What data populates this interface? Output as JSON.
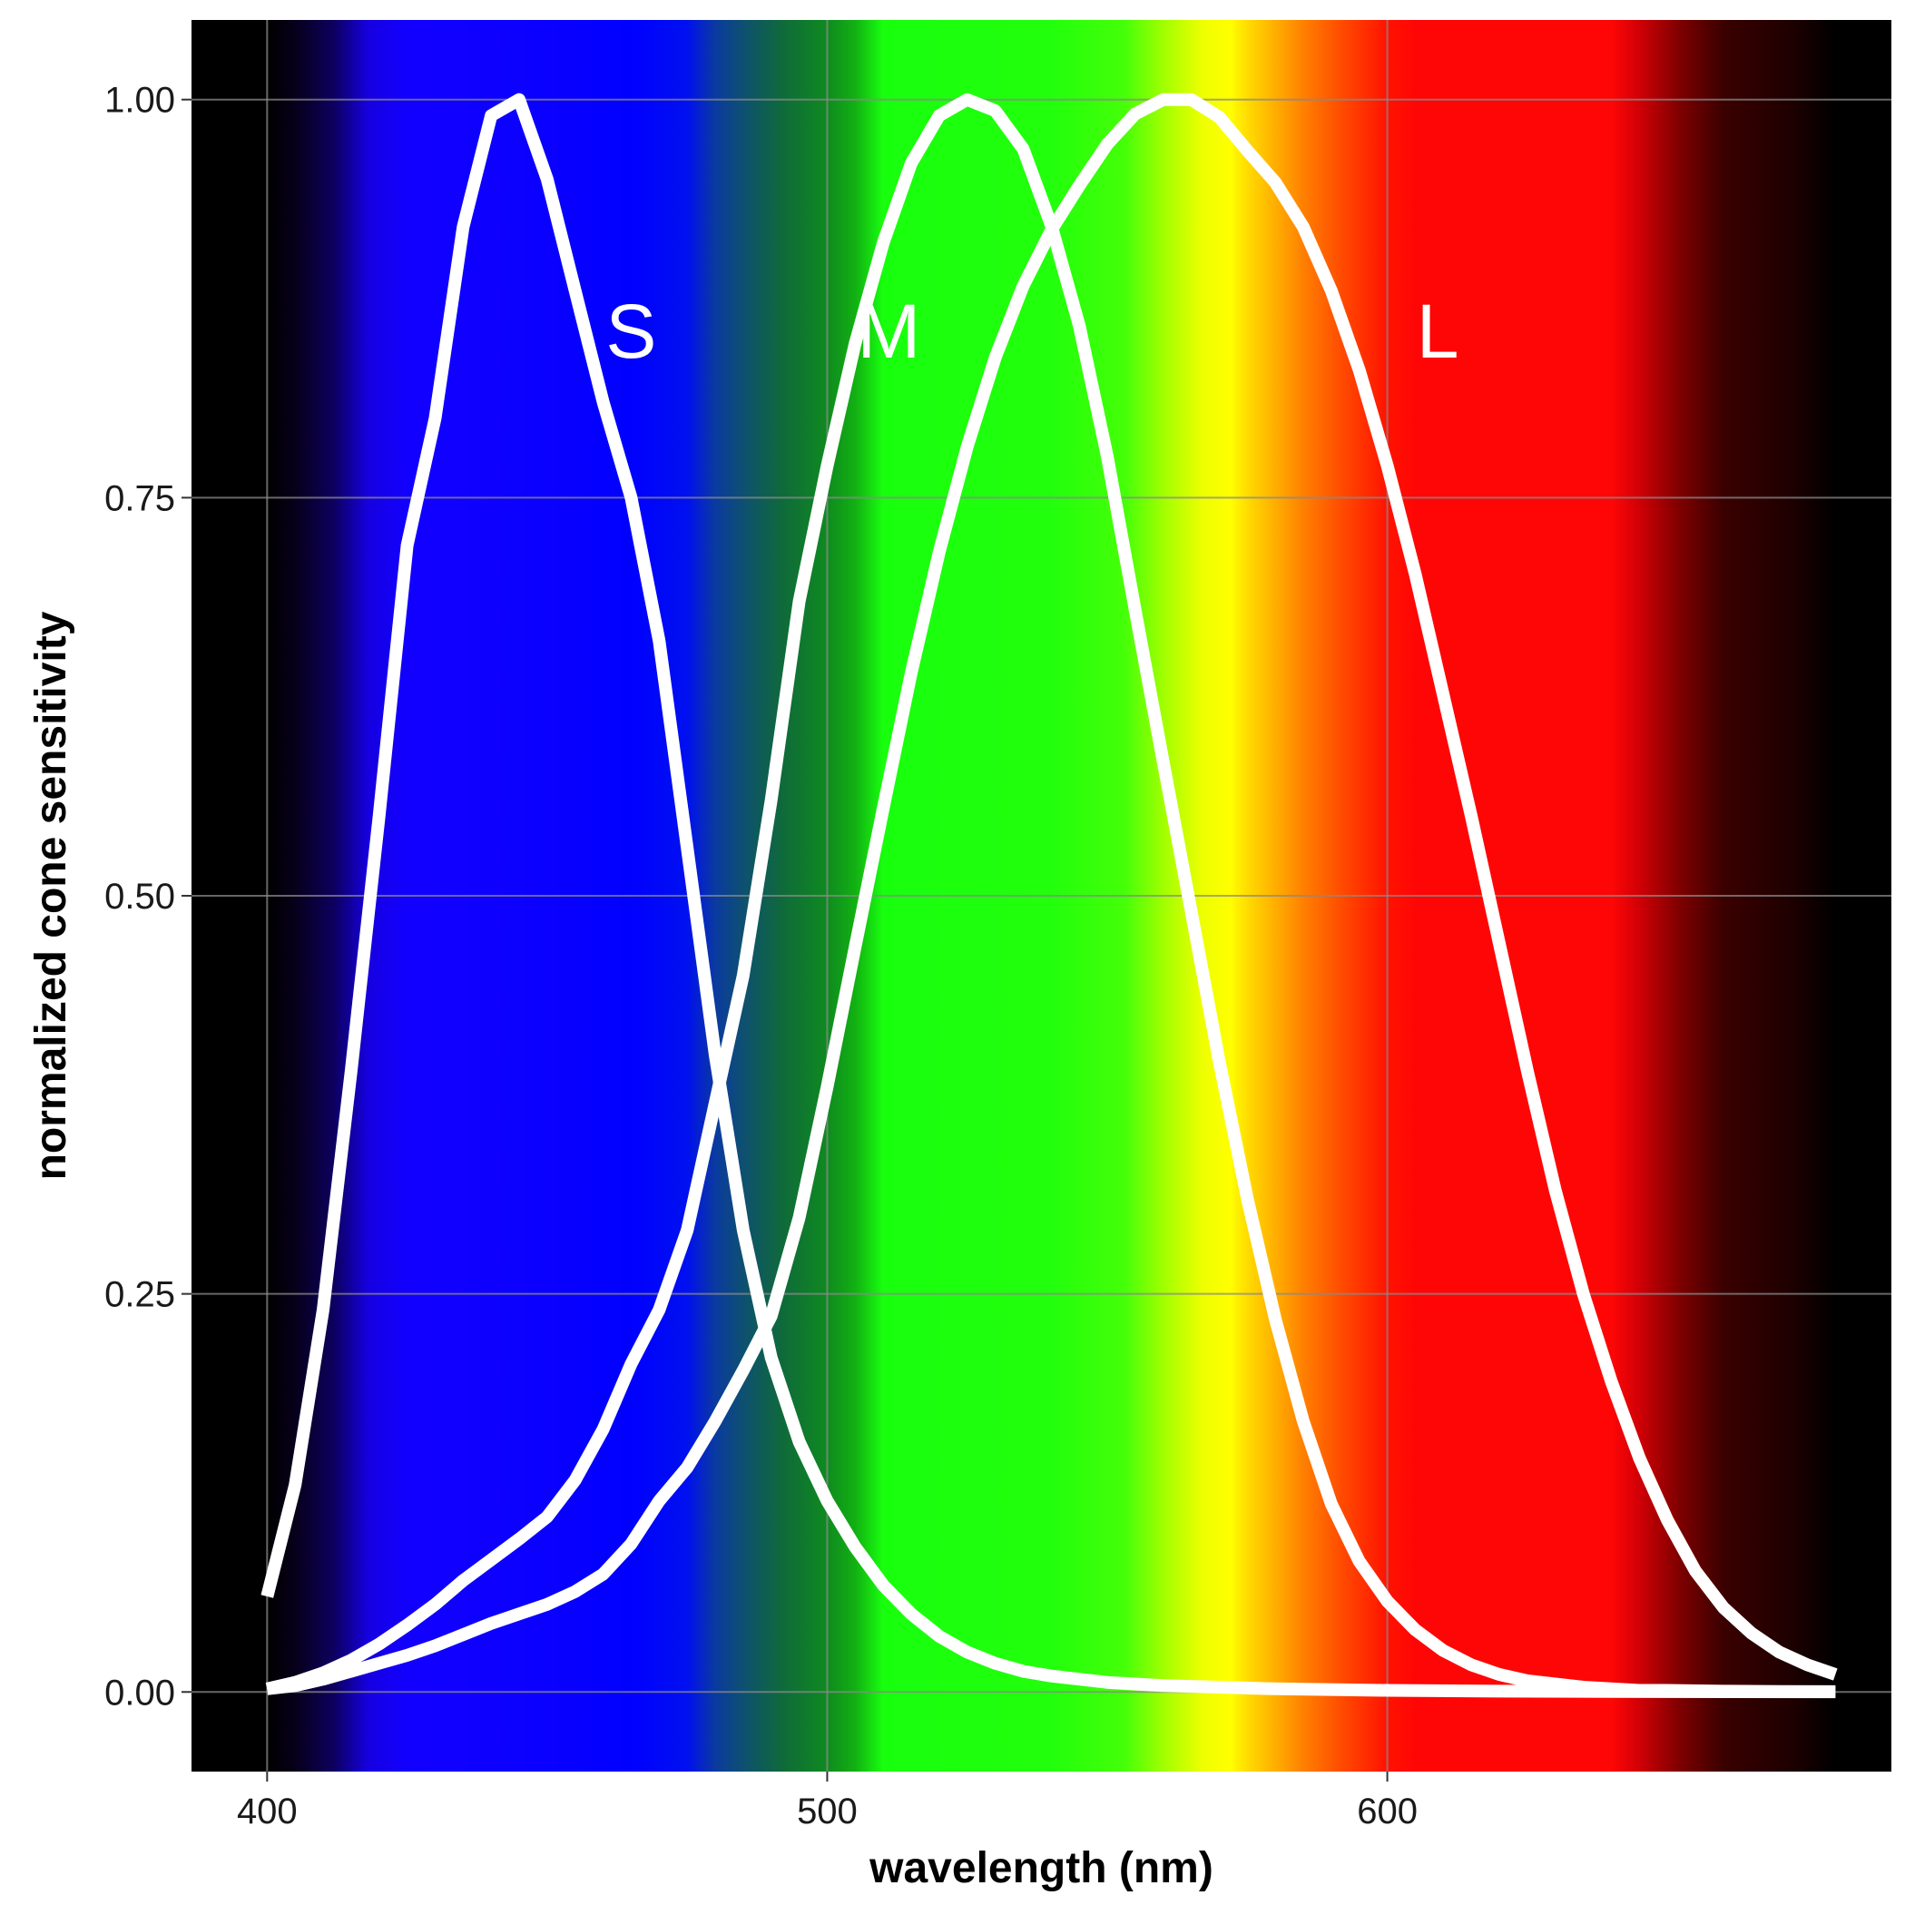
{
  "chart_data": {
    "type": "line",
    "title": "",
    "xlabel": "wavelength (nm)",
    "ylabel": "normalized cone sensitivity",
    "xlim": [
      386.5,
      690
    ],
    "ylim": [
      -0.05,
      1.05
    ],
    "x_ticks": [
      400,
      500,
      600
    ],
    "x_tick_labels": [
      "400",
      "500",
      "600"
    ],
    "y_ticks": [
      0,
      0.25,
      0.5,
      0.75,
      1.0
    ],
    "y_tick_labels": [
      "0.00",
      "0.25",
      "0.50",
      "0.75",
      "1.00"
    ],
    "grid": true,
    "legend": "none",
    "background": "visible spectrum gradient from 400 to 680 nm",
    "line_color": "#ffffff",
    "spectrum_stops": [
      {
        "nm": 400,
        "color": "#000000"
      },
      {
        "nm": 405,
        "color": "#07001a"
      },
      {
        "nm": 412,
        "color": "#0d0060"
      },
      {
        "nm": 418,
        "color": "#1600e0"
      },
      {
        "nm": 425,
        "color": "#1200ff"
      },
      {
        "nm": 450,
        "color": "#0a00ff"
      },
      {
        "nm": 465,
        "color": "#0000ff"
      },
      {
        "nm": 475,
        "color": "#0010f0"
      },
      {
        "nm": 480,
        "color": "#0a3aa0"
      },
      {
        "nm": 485,
        "color": "#0e5070"
      },
      {
        "nm": 492,
        "color": "#0f6a3a"
      },
      {
        "nm": 500,
        "color": "#0f8a20"
      },
      {
        "nm": 505,
        "color": "#12b012"
      },
      {
        "nm": 510,
        "color": "#18ff0e"
      },
      {
        "nm": 540,
        "color": "#22ff0c"
      },
      {
        "nm": 553,
        "color": "#44ff08"
      },
      {
        "nm": 560,
        "color": "#a0ff00"
      },
      {
        "nm": 567,
        "color": "#eeff00"
      },
      {
        "nm": 572,
        "color": "#ffff00"
      },
      {
        "nm": 575,
        "color": "#ffdc00"
      },
      {
        "nm": 580,
        "color": "#ffae00"
      },
      {
        "nm": 585,
        "color": "#ff8000"
      },
      {
        "nm": 592,
        "color": "#ff4a00"
      },
      {
        "nm": 600,
        "color": "#ff1200"
      },
      {
        "nm": 605,
        "color": "#ff0606"
      },
      {
        "nm": 640,
        "color": "#ff0606"
      },
      {
        "nm": 645,
        "color": "#d00006"
      },
      {
        "nm": 652,
        "color": "#800000"
      },
      {
        "nm": 660,
        "color": "#3a0000"
      },
      {
        "nm": 672,
        "color": "#1e0000"
      },
      {
        "nm": 680,
        "color": "#000000"
      }
    ],
    "series": [
      {
        "name": "S",
        "label_x": 465,
        "label_y": 0.855,
        "x": [
          400,
          405,
          410,
          415,
          420,
          425,
          430,
          435,
          440,
          445,
          450,
          455,
          460,
          465,
          470,
          475,
          480,
          485,
          490,
          495,
          500,
          505,
          510,
          515,
          520,
          525,
          530,
          535,
          540,
          545,
          550,
          560,
          570,
          580,
          600,
          620,
          650,
          680
        ],
        "values": [
          0.06,
          0.13,
          0.24,
          0.39,
          0.55,
          0.72,
          0.8,
          0.92,
          0.99,
          1.0,
          0.95,
          0.88,
          0.81,
          0.75,
          0.66,
          0.53,
          0.4,
          0.29,
          0.21,
          0.157,
          0.12,
          0.091,
          0.067,
          0.049,
          0.035,
          0.025,
          0.018,
          0.013,
          0.01,
          0.008,
          0.006,
          0.004,
          0.003,
          0.002,
          0.001,
          0.0005,
          0.0002,
          0.0001
        ]
      },
      {
        "name": "M",
        "label_x": 511,
        "label_y": 0.855,
        "x": [
          400,
          405,
          410,
          415,
          420,
          425,
          430,
          435,
          440,
          445,
          450,
          455,
          460,
          465,
          470,
          475,
          480,
          485,
          490,
          495,
          500,
          505,
          510,
          515,
          520,
          525,
          530,
          535,
          540,
          545,
          550,
          555,
          560,
          565,
          570,
          575,
          580,
          585,
          590,
          595,
          600,
          605,
          610,
          615,
          620,
          625,
          630,
          635,
          640,
          645,
          650,
          660,
          670,
          680
        ],
        "values": [
          0.002,
          0.006,
          0.012,
          0.02,
          0.03,
          0.042,
          0.055,
          0.07,
          0.083,
          0.096,
          0.11,
          0.133,
          0.165,
          0.206,
          0.24,
          0.29,
          0.37,
          0.45,
          0.56,
          0.685,
          0.77,
          0.847,
          0.91,
          0.96,
          0.99,
          1.0,
          0.993,
          0.969,
          0.921,
          0.858,
          0.776,
          0.679,
          0.584,
          0.49,
          0.396,
          0.31,
          0.234,
          0.17,
          0.118,
          0.082,
          0.057,
          0.039,
          0.026,
          0.017,
          0.011,
          0.007,
          0.005,
          0.003,
          0.002,
          0.001,
          0.001,
          0.0005,
          0.0003,
          0.0002
        ]
      },
      {
        "name": "L",
        "label_x": 609,
        "label_y": 0.855,
        "x": [
          400,
          405,
          410,
          415,
          420,
          425,
          430,
          435,
          440,
          445,
          450,
          455,
          460,
          465,
          470,
          475,
          480,
          485,
          490,
          495,
          500,
          505,
          510,
          515,
          520,
          525,
          530,
          535,
          540,
          545,
          550,
          555,
          560,
          565,
          570,
          575,
          580,
          585,
          590,
          595,
          600,
          605,
          610,
          615,
          620,
          625,
          630,
          635,
          640,
          645,
          650,
          655,
          660,
          665,
          670,
          675,
          680
        ],
        "values": [
          0.002,
          0.004,
          0.008,
          0.013,
          0.018,
          0.023,
          0.029,
          0.036,
          0.043,
          0.049,
          0.055,
          0.063,
          0.074,
          0.093,
          0.12,
          0.141,
          0.17,
          0.202,
          0.236,
          0.298,
          0.38,
          0.468,
          0.555,
          0.64,
          0.716,
          0.782,
          0.838,
          0.883,
          0.918,
          0.946,
          0.972,
          0.991,
          1.0,
          1.0,
          0.989,
          0.968,
          0.948,
          0.92,
          0.88,
          0.83,
          0.77,
          0.702,
          0.626,
          0.55,
          0.47,
          0.39,
          0.315,
          0.25,
          0.195,
          0.147,
          0.108,
          0.076,
          0.053,
          0.037,
          0.025,
          0.017,
          0.011
        ]
      }
    ]
  }
}
